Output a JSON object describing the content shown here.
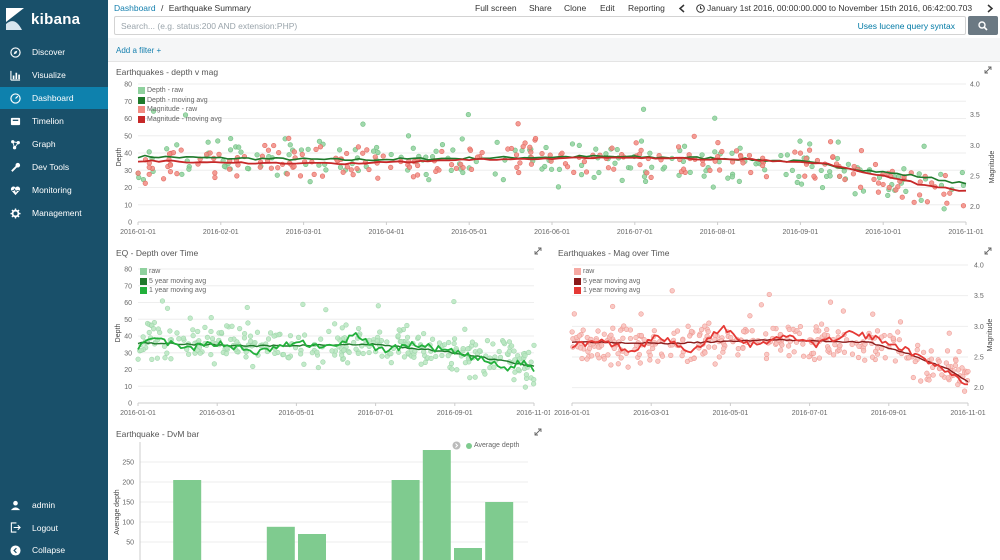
{
  "app": {
    "brand": "kibana"
  },
  "sidebar": {
    "items": [
      {
        "label": "Discover",
        "icon": "compass-icon"
      },
      {
        "label": "Visualize",
        "icon": "bar-chart-icon"
      },
      {
        "label": "Dashboard",
        "icon": "dashboard-icon",
        "active": true
      },
      {
        "label": "Timelion",
        "icon": "shield-icon"
      },
      {
        "label": "Graph",
        "icon": "graph-icon"
      },
      {
        "label": "Dev Tools",
        "icon": "wrench-icon"
      },
      {
        "label": "Monitoring",
        "icon": "heartbeat-icon"
      },
      {
        "label": "Management",
        "icon": "gear-icon"
      }
    ],
    "bottom": [
      {
        "label": "admin",
        "icon": "user-icon"
      },
      {
        "label": "Logout",
        "icon": "logout-icon"
      },
      {
        "label": "Collapse",
        "icon": "collapse-icon"
      }
    ]
  },
  "header": {
    "breadcrumb_root": "Dashboard",
    "breadcrumb_sep": "/",
    "breadcrumb_current": "Earthquake Summary",
    "menu": {
      "full_screen": "Full screen",
      "share": "Share",
      "clone": "Clone",
      "edit": "Edit",
      "reporting": "Reporting"
    },
    "time_range": "January 1st 2016, 00:00:00.000 to November 15th 2016, 06:42:00.703"
  },
  "query": {
    "placeholder": "Search... (e.g. status:200 AND extension:PHP)",
    "syntax_link": "Uses lucene query syntax"
  },
  "filter": {
    "add_label": "Add a filter +"
  },
  "colors": {
    "sidebar": "#19506a",
    "active": "#0e81ad",
    "depth_raw": "#8fd19e",
    "depth_avg": "#1f7a2b",
    "mag_raw": "#f28b82",
    "mag_avg": "#c62828",
    "bar": "#7fcb8f"
  },
  "panels": {
    "p1": {
      "title": "Earthquakes - depth v mag",
      "y_left_label": "Depth",
      "y_right_label": "Magnitude",
      "legend": [
        "Depth - raw",
        "Depth - moving avg",
        "Magnitude - raw",
        "Magnitude - moving avg"
      ]
    },
    "p2": {
      "title": "EQ - Depth over Time",
      "y_label": "Depth",
      "legend": [
        "raw",
        "5 year moving avg",
        "1 year moving avg"
      ]
    },
    "p3": {
      "title": "Earthquakes - Mag over Time",
      "y_label": "Magnitude",
      "legend": [
        "raw",
        "5 year moving avg",
        "1 year moving avg"
      ]
    },
    "p4": {
      "title": "Earthquake - DvM bar",
      "y_label": "Average depth",
      "legend": "Average depth"
    }
  },
  "chart_data": [
    {
      "type": "scatter",
      "title": "Earthquakes - depth v mag",
      "x_ticks": [
        "2016-01-01",
        "2016-02-01",
        "2016-03-01",
        "2016-04-01",
        "2016-05-01",
        "2016-06-01",
        "2016-07-01",
        "2016-08-01",
        "2016-09-01",
        "2016-10-01",
        "2016-11-01"
      ],
      "y_left_ticks": [
        0,
        10,
        20,
        30,
        40,
        50,
        60,
        70,
        80
      ],
      "y_right_ticks": [
        "2.0",
        "2.5",
        "3.0",
        "3.5",
        "4.0"
      ],
      "ylim_left": [
        0,
        80
      ],
      "ylim_right": [
        1.75,
        4.0
      ],
      "series": [
        {
          "name": "Depth - raw",
          "axis": "left",
          "kind": "points",
          "baseline": [
            [
              0,
              37
            ],
            [
              0.3,
              36
            ],
            [
              0.55,
              35
            ],
            [
              0.8,
              32
            ],
            [
              0.95,
              22
            ],
            [
              1,
              20
            ]
          ],
          "spread": 9
        },
        {
          "name": "Depth - moving avg",
          "axis": "left",
          "kind": "line",
          "values": [
            [
              0,
              38
            ],
            [
              0.1,
              37
            ],
            [
              0.25,
              36
            ],
            [
              0.4,
              37
            ],
            [
              0.55,
              38
            ],
            [
              0.7,
              37
            ],
            [
              0.8,
              35
            ],
            [
              0.88,
              30
            ],
            [
              0.95,
              26
            ],
            [
              1,
              22
            ]
          ]
        },
        {
          "name": "Magnitude - raw",
          "axis": "right",
          "kind": "points",
          "baseline": [
            [
              0,
              2.7
            ],
            [
              0.5,
              2.78
            ],
            [
              0.8,
              2.72
            ],
            [
              0.9,
              2.4
            ],
            [
              1,
              2.15
            ]
          ],
          "spread": 0.2
        },
        {
          "name": "Magnitude - moving avg",
          "axis": "right",
          "kind": "line",
          "values": [
            [
              0,
              2.75
            ],
            [
              0.1,
              2.72
            ],
            [
              0.25,
              2.7
            ],
            [
              0.45,
              2.78
            ],
            [
              0.6,
              2.8
            ],
            [
              0.75,
              2.76
            ],
            [
              0.83,
              2.7
            ],
            [
              0.9,
              2.5
            ],
            [
              0.95,
              2.35
            ],
            [
              1,
              2.25
            ]
          ]
        }
      ]
    },
    {
      "type": "scatter",
      "title": "EQ - Depth over Time",
      "x_ticks": [
        "2016-01-01",
        "2016-03-01",
        "2016-05-01",
        "2016-07-01",
        "2016-09-01",
        "2016-11-01"
      ],
      "y_ticks": [
        0,
        10,
        20,
        30,
        40,
        50,
        60,
        70,
        80
      ],
      "ylim": [
        0,
        80
      ],
      "series": [
        {
          "name": "raw",
          "kind": "points",
          "baseline": [
            [
              0,
              36
            ],
            [
              0.5,
              35
            ],
            [
              0.8,
              33
            ],
            [
              0.95,
              25
            ],
            [
              1,
              18
            ]
          ],
          "spread": 9
        },
        {
          "name": "5 year moving avg",
          "kind": "line",
          "values": [
            [
              0,
              36
            ],
            [
              0.3,
              34
            ],
            [
              0.6,
              35
            ],
            [
              0.8,
              30
            ],
            [
              0.9,
              26
            ],
            [
              1,
              22
            ]
          ]
        },
        {
          "name": "1 year moving avg",
          "kind": "line",
          "values": [
            [
              0,
              34
            ],
            [
              0.05,
              38
            ],
            [
              0.12,
              32
            ],
            [
              0.2,
              36
            ],
            [
              0.3,
              30
            ],
            [
              0.4,
              36
            ],
            [
              0.5,
              33
            ],
            [
              0.55,
              42
            ],
            [
              0.6,
              31
            ],
            [
              0.7,
              35
            ],
            [
              0.8,
              30
            ],
            [
              0.88,
              25
            ],
            [
              0.93,
              20
            ],
            [
              0.97,
              25
            ],
            [
              1,
              20
            ]
          ]
        }
      ]
    },
    {
      "type": "scatter",
      "title": "Earthquakes - Mag over Time",
      "x_ticks": [
        "2016-01-01",
        "2016-03-01",
        "2016-05-01",
        "2016-07-01",
        "2016-09-01",
        "2016-11-01"
      ],
      "y_ticks": [
        "2.0",
        "2.5",
        "3.0",
        "3.5",
        "4.0"
      ],
      "ylim": [
        1.75,
        4.0
      ],
      "series": [
        {
          "name": "raw",
          "kind": "points",
          "baseline": [
            [
              0,
              2.7
            ],
            [
              0.5,
              2.75
            ],
            [
              0.8,
              2.7
            ],
            [
              0.9,
              2.4
            ],
            [
              1,
              2.2
            ]
          ],
          "spread": 0.22
        },
        {
          "name": "5 year moving avg",
          "kind": "line",
          "values": [
            [
              0,
              2.75
            ],
            [
              0.25,
              2.72
            ],
            [
              0.5,
              2.78
            ],
            [
              0.75,
              2.74
            ],
            [
              0.85,
              2.55
            ],
            [
              0.95,
              2.3
            ],
            [
              1,
              2.1
            ]
          ]
        },
        {
          "name": "1 year moving avg",
          "kind": "line",
          "values": [
            [
              0,
              2.7
            ],
            [
              0.08,
              2.75
            ],
            [
              0.15,
              2.6
            ],
            [
              0.22,
              2.85
            ],
            [
              0.3,
              2.55
            ],
            [
              0.38,
              3.0
            ],
            [
              0.45,
              2.7
            ],
            [
              0.55,
              2.85
            ],
            [
              0.62,
              2.7
            ],
            [
              0.7,
              2.9
            ],
            [
              0.8,
              2.75
            ],
            [
              0.88,
              2.5
            ],
            [
              0.94,
              2.3
            ],
            [
              1,
              2.05
            ]
          ]
        }
      ]
    },
    {
      "type": "bar",
      "title": "Earthquake - DvM bar",
      "ylabel": "Average depth",
      "y_ticks": [
        50,
        100,
        150,
        200,
        250
      ],
      "ylim": [
        0,
        300
      ],
      "values": [
        2,
        205,
        0,
        0,
        88,
        70,
        0,
        0,
        205,
        280,
        35,
        150
      ]
    }
  ]
}
